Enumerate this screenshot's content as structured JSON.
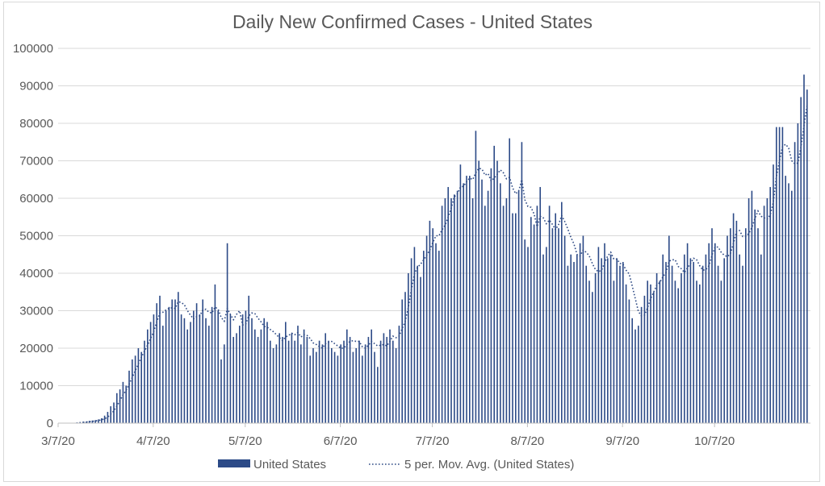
{
  "chart_data": {
    "type": "bar",
    "title": "Daily New Confirmed Cases - United States",
    "xlabel": "",
    "ylabel": "",
    "ylim": [
      0,
      100000
    ],
    "y_ticks": [
      0,
      10000,
      20000,
      30000,
      40000,
      50000,
      60000,
      70000,
      80000,
      90000,
      100000
    ],
    "x_start_date": "3/7/20",
    "x_tick_labels": [
      "3/7/20",
      "4/7/20",
      "5/7/20",
      "6/7/20",
      "7/7/20",
      "8/7/20",
      "9/7/20",
      "10/7/20"
    ],
    "x_tick_day_offsets": [
      0,
      31,
      61,
      92,
      122,
      153,
      184,
      214
    ],
    "grid": true,
    "legend_position": "bottom",
    "series": [
      {
        "name": "United States",
        "type": "bar",
        "color": "#2c4a87",
        "values": [
          100,
          100,
          200,
          300,
          400,
          400,
          600,
          700,
          800,
          1000,
          1300,
          2000,
          3000,
          4500,
          5500,
          8000,
          9000,
          11000,
          10000,
          14000,
          17000,
          18000,
          20000,
          19000,
          22000,
          25000,
          27000,
          29000,
          32000,
          34000,
          26000,
          30000,
          31000,
          33000,
          33000,
          35000,
          29000,
          28000,
          25000,
          27000,
          30000,
          32000,
          29000,
          33000,
          28000,
          26000,
          31000,
          37000,
          30000,
          17000,
          21000,
          48000,
          29000,
          23000,
          24000,
          26000,
          29000,
          30000,
          34000,
          28000,
          25000,
          23000,
          25000,
          28000,
          27000,
          22000,
          20000,
          21000,
          24000,
          23000,
          27000,
          22000,
          24000,
          22000,
          26000,
          21000,
          25000,
          23000,
          18000,
          20000,
          19000,
          22000,
          21000,
          24000,
          22000,
          20000,
          19000,
          18000,
          21000,
          22000,
          25000,
          23000,
          19000,
          20000,
          22000,
          18000,
          21000,
          23000,
          25000,
          19000,
          15000,
          22000,
          24000,
          23000,
          25000,
          22000,
          20000,
          26000,
          33000,
          35000,
          40000,
          44000,
          47000,
          42000,
          39000,
          46000,
          50000,
          54000,
          52000,
          48000,
          46000,
          58000,
          60000,
          63000,
          60000,
          61000,
          62000,
          69000,
          64000,
          66000,
          66000,
          60000,
          78000,
          70000,
          65000,
          58000,
          62000,
          68000,
          74000,
          70000,
          64000,
          58000,
          60000,
          76000,
          56000,
          56000,
          62000,
          75000,
          49000,
          47000,
          55000,
          53000,
          58000,
          63000,
          45000,
          47000,
          58000,
          52000,
          56000,
          52000,
          59000,
          50000,
          42000,
          45000,
          43000,
          45000,
          48000,
          50000,
          42000,
          38000,
          35000,
          40000,
          47000,
          44000,
          48000,
          44000,
          45000,
          38000,
          44000,
          42000,
          43000,
          37000,
          33000,
          28000,
          25000,
          26000,
          31000,
          34000,
          38000,
          37000,
          35000,
          40000,
          38000,
          45000,
          43000,
          50000,
          42000,
          38000,
          36000,
          40000,
          45000,
          48000,
          44000,
          43000,
          38000,
          37000,
          42000,
          45000,
          48000,
          52000,
          48000,
          42000,
          38000,
          44000,
          50000,
          52000,
          56000,
          54000,
          45000,
          42000,
          52000,
          60000,
          62000,
          57000,
          52000,
          45000,
          58000,
          60000,
          63000,
          69000,
          79000,
          79000,
          79000,
          66000,
          64000,
          62000,
          75000,
          80000,
          87000,
          93000,
          89000
        ]
      },
      {
        "name": "5 per. Mov. Avg. (United States)",
        "type": "line",
        "style": "dotted",
        "color": "#2f4b85",
        "period": 5
      }
    ]
  }
}
